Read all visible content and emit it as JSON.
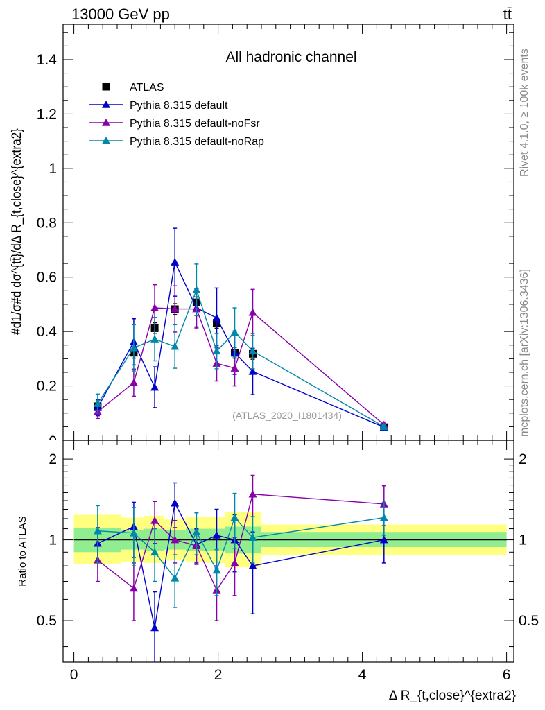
{
  "header": {
    "energy_label": "13000 GeV pp",
    "process_label": "tt̄"
  },
  "side_labels": {
    "rivet": "Rivet 4.1.0, ≥ 100k events",
    "mcplots": "mcplots.cern.ch [arXiv:1306.3436]"
  },
  "watermark": "(ATLAS_2020_I1801434)",
  "colors": {
    "ATLAS": "#000000",
    "default": "#0000cc",
    "noFsr": "#8800aa",
    "noRap": "#0088aa",
    "band_inner": "#90ee90",
    "band_outer": "#ffff80"
  },
  "chart_data": [
    {
      "type": "line",
      "panel": "main",
      "title": "All hadronic channel",
      "ylabel": "#d1/σ#d dσ^{tt̄}/dΔ R_{t,close}^{extra2}",
      "xlim": [
        -0.15,
        6.1
      ],
      "ylim": [
        0,
        1.53
      ],
      "yticks": [
        0.2,
        0.4,
        0.6,
        0.8,
        1,
        1.2,
        1.4
      ],
      "ytick_labels": [
        "0.2",
        "0.4",
        "0.6",
        "0.8",
        "1",
        "1.2",
        "1.4"
      ],
      "bottom_tick_label": "0",
      "legend_position": "top-left",
      "legend": [
        "ATLAS",
        "Pythia 8.315 default",
        "Pythia 8.315 default-noFsr",
        "Pythia 8.315 default-noRap"
      ],
      "series": [
        {
          "name": "ATLAS",
          "key": "ATLAS",
          "marker": "square",
          "line": false,
          "x": [
            0.33,
            0.83,
            1.12,
            1.4,
            1.7,
            1.98,
            2.23,
            2.48,
            4.3
          ],
          "y": [
            0.125,
            0.322,
            0.412,
            0.482,
            0.507,
            0.432,
            0.322,
            0.318,
            0.048
          ],
          "err": [
            0.02,
            0.02,
            0.02,
            0.02,
            0.02,
            0.02,
            0.02,
            0.02,
            0.005
          ]
        },
        {
          "name": "Pythia 8.315 default",
          "key": "default",
          "marker": "triangle",
          "line": true,
          "x": [
            0.33,
            0.83,
            1.12,
            1.4,
            1.7,
            1.98,
            2.23,
            2.48,
            4.3
          ],
          "y": [
            0.12,
            0.362,
            0.195,
            0.655,
            0.487,
            0.45,
            0.322,
            0.253,
            0.048
          ],
          "err": [
            0.03,
            0.085,
            0.075,
            0.125,
            0.07,
            0.11,
            0.08,
            0.085,
            0.008
          ]
        },
        {
          "name": "Pythia 8.315 default-noFsr",
          "key": "noFsr",
          "marker": "triangle",
          "line": true,
          "x": [
            0.33,
            0.83,
            1.12,
            1.4,
            1.7,
            1.98,
            2.23,
            2.48,
            4.3
          ],
          "y": [
            0.105,
            0.212,
            0.487,
            0.483,
            0.483,
            0.283,
            0.265,
            0.47,
            0.057
          ],
          "err": [
            0.025,
            0.05,
            0.085,
            0.085,
            0.07,
            0.065,
            0.065,
            0.085,
            0.01
          ]
        },
        {
          "name": "Pythia 8.315 default-noRap",
          "key": "noRap",
          "marker": "triangle",
          "line": true,
          "x": [
            0.33,
            0.83,
            1.12,
            1.4,
            1.7,
            1.98,
            2.23,
            2.48,
            4.3
          ],
          "y": [
            0.135,
            0.34,
            0.372,
            0.345,
            0.553,
            0.328,
            0.397,
            0.328,
            0.05
          ],
          "err": [
            0.035,
            0.085,
            0.08,
            0.08,
            0.095,
            0.065,
            0.09,
            0.065,
            0.008
          ]
        }
      ]
    },
    {
      "type": "line",
      "panel": "ratio",
      "ylabel": "Ratio to ATLAS",
      "xlabel": "Δ R_{t,close}^{extra2}",
      "xlim": [
        -0.15,
        6.1
      ],
      "ylim": [
        0.35,
        2.35
      ],
      "yscale": "log",
      "yticks": [
        0.5,
        1,
        2
      ],
      "ytick_labels": [
        "0.5",
        "1",
        "2"
      ],
      "xticks": [
        0,
        2,
        4,
        6
      ],
      "xtick_labels": [
        "0",
        "2",
        "4",
        "6"
      ],
      "bands": [
        {
          "x0": 0.0,
          "x1": 0.65,
          "inner": [
            0.9,
            1.11
          ],
          "outer": [
            0.81,
            1.24
          ]
        },
        {
          "x0": 0.65,
          "x1": 0.97,
          "inner": [
            0.92,
            1.09
          ],
          "outer": [
            0.83,
            1.21
          ]
        },
        {
          "x0": 0.97,
          "x1": 1.25,
          "inner": [
            0.91,
            1.1
          ],
          "outer": [
            0.82,
            1.23
          ]
        },
        {
          "x0": 1.25,
          "x1": 1.55,
          "inner": [
            0.92,
            1.09
          ],
          "outer": [
            0.84,
            1.19
          ]
        },
        {
          "x0": 1.55,
          "x1": 1.85,
          "inner": [
            0.91,
            1.1
          ],
          "outer": [
            0.83,
            1.22
          ]
        },
        {
          "x0": 1.85,
          "x1": 2.1,
          "inner": [
            0.91,
            1.1
          ],
          "outer": [
            0.82,
            1.22
          ]
        },
        {
          "x0": 2.1,
          "x1": 2.6,
          "inner": [
            0.89,
            1.12
          ],
          "outer": [
            0.79,
            1.27
          ]
        },
        {
          "x0": 2.6,
          "x1": 6.0,
          "inner": [
            0.94,
            1.07
          ],
          "outer": [
            0.88,
            1.14
          ]
        }
      ],
      "series": [
        {
          "name": "Pythia 8.315 default",
          "key": "default",
          "x": [
            0.33,
            0.83,
            1.12,
            1.4,
            1.7,
            1.98,
            2.23,
            2.48,
            4.3
          ],
          "y": [
            0.97,
            1.12,
            0.47,
            1.37,
            0.96,
            1.04,
            1.0,
            0.8,
            1.0
          ],
          "err": [
            0.14,
            0.26,
            0.17,
            0.26,
            0.14,
            0.26,
            0.24,
            0.27,
            0.18
          ]
        },
        {
          "name": "Pythia 8.315 default-noFsr",
          "key": "noFsr",
          "x": [
            0.33,
            0.83,
            1.12,
            1.4,
            1.7,
            1.98,
            2.23,
            2.48,
            4.3
          ],
          "y": [
            0.84,
            0.66,
            1.18,
            1.0,
            0.95,
            0.65,
            0.82,
            1.48,
            1.36
          ],
          "err": [
            0.14,
            0.16,
            0.21,
            0.18,
            0.14,
            0.15,
            0.2,
            0.26,
            0.23
          ]
        },
        {
          "name": "Pythia 8.315 default-noRap",
          "key": "noRap",
          "x": [
            0.33,
            0.83,
            1.12,
            1.4,
            1.7,
            1.98,
            2.23,
            2.48,
            4.3
          ],
          "y": [
            1.08,
            1.06,
            0.9,
            0.72,
            1.07,
            0.77,
            1.21,
            1.02,
            1.21
          ],
          "err": [
            0.26,
            0.26,
            0.2,
            0.16,
            0.19,
            0.15,
            0.28,
            0.2,
            0.17
          ]
        }
      ]
    }
  ]
}
